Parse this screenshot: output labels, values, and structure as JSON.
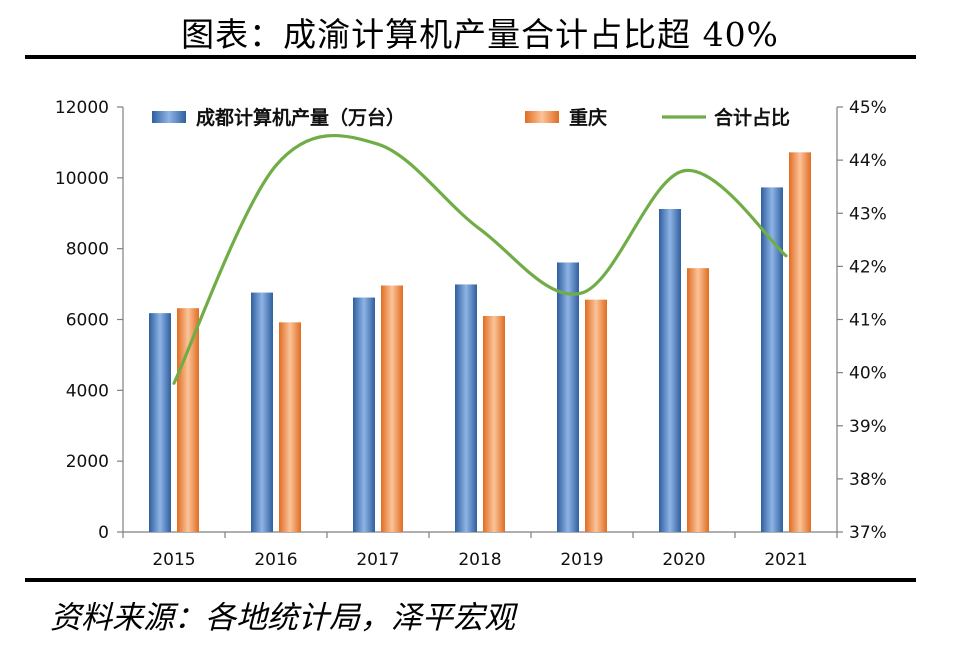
{
  "page": {
    "title": "图表：成渝计算机产量合计占比超 40%",
    "source": "资料来源：各地统计局，泽平宏观"
  },
  "chart_data": {
    "type": "bar",
    "title": "图表：成渝计算机产量合计占比超 40%",
    "categories": [
      "2015",
      "2016",
      "2017",
      "2018",
      "2019",
      "2020",
      "2021"
    ],
    "series": [
      {
        "name": "成都计算机产量（万台）",
        "axis": "left",
        "kind": "bar",
        "color": "#4a7fc7",
        "values": [
          6180,
          6760,
          6620,
          6990,
          7610,
          9120,
          9730
        ]
      },
      {
        "name": "重庆",
        "axis": "left",
        "kind": "bar",
        "color": "#f28e4a",
        "values": [
          6320,
          5920,
          6960,
          6100,
          6560,
          7450,
          10720
        ]
      },
      {
        "name": "合计占比",
        "axis": "right",
        "kind": "line",
        "color": "#71ad47",
        "values": [
          39.8,
          43.9,
          44.3,
          42.7,
          41.5,
          43.8,
          42.2
        ]
      }
    ],
    "y_left": {
      "min": 0,
      "max": 12000,
      "step": 2000,
      "ticks": [
        "0",
        "2000",
        "4000",
        "6000",
        "8000",
        "10000",
        "12000"
      ]
    },
    "y_right": {
      "min": 37,
      "max": 45,
      "step": 1,
      "ticks": [
        "37%",
        "38%",
        "39%",
        "40%",
        "41%",
        "42%",
        "43%",
        "44%",
        "45%"
      ]
    },
    "legend_position": "top",
    "grid": false
  }
}
